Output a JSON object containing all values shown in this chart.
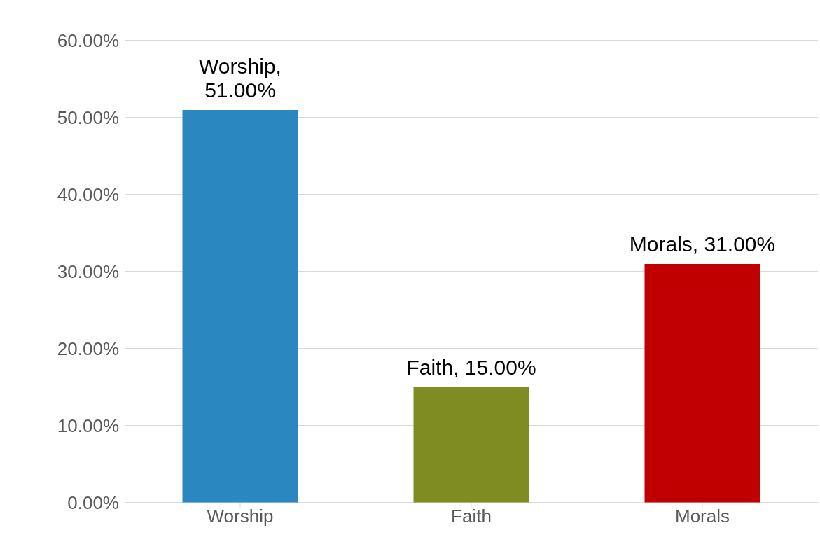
{
  "chart_data": {
    "type": "bar",
    "categories": [
      "Worship",
      "Faith",
      "Morals"
    ],
    "values": [
      51,
      15,
      31
    ],
    "colors": [
      "#2b87bf",
      "#7f8c22",
      "#c00000"
    ],
    "value_labels": [
      "Worship, 51.00%",
      "Faith, 15.00%",
      "Morals, 31.00%"
    ],
    "ylim": [
      0,
      60
    ],
    "yticks": [
      {
        "value": 0,
        "label": "0.00%"
      },
      {
        "value": 10,
        "label": "10.00%"
      },
      {
        "value": 20,
        "label": "20.00%"
      },
      {
        "value": 30,
        "label": "30.00%"
      },
      {
        "value": 40,
        "label": "40.00%"
      },
      {
        "value": 50,
        "label": "50.00%"
      },
      {
        "value": 60,
        "label": "60.00%"
      }
    ],
    "grid": "y",
    "legend": false
  }
}
